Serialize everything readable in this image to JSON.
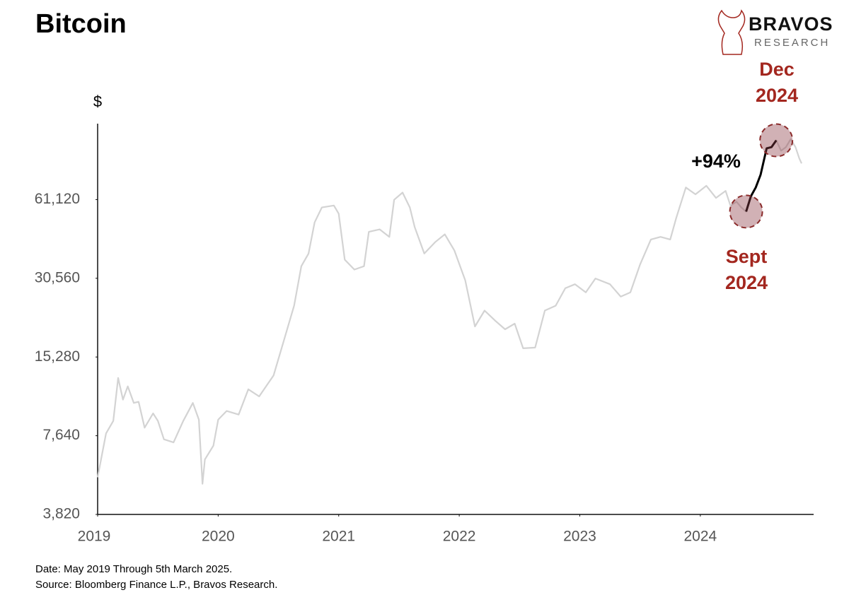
{
  "chart_data": {
    "type": "line",
    "title": "Bitcoin",
    "y_label": "$",
    "brand": {
      "name": "BRAVOS",
      "subtitle": "RESEARCH"
    },
    "notes": [
      "Date: May 2019 Through 5th March 2025.",
      "Source: Bloomberg Finance L.P., Bravos Research."
    ],
    "annotations": {
      "change": "+94%",
      "end": [
        "Dec",
        "2024"
      ],
      "start": [
        "Sept",
        "2024"
      ]
    },
    "log_scale": true,
    "grid": false,
    "xlim": [
      2019.33,
      2025.27
    ],
    "ylim": [
      3820,
      120000
    ],
    "xticks": [
      {
        "value": 2019.33,
        "label": "2019"
      },
      {
        "value": 2020.33,
        "label": "2020"
      },
      {
        "value": 2021.33,
        "label": "2021"
      },
      {
        "value": 2022.33,
        "label": "2022"
      },
      {
        "value": 2023.33,
        "label": "2023"
      },
      {
        "value": 2024.33,
        "label": "2024"
      }
    ],
    "yticks": [
      {
        "value": 3820,
        "label": "3,820"
      },
      {
        "value": 7640,
        "label": "7,640"
      },
      {
        "value": 15280,
        "label": "15,280"
      },
      {
        "value": 30560,
        "label": "30,560"
      },
      {
        "value": 61120,
        "label": "61,120"
      }
    ],
    "series": [
      {
        "color": "#d3d3d3",
        "x": [
          2019.33,
          2019.4,
          2019.46,
          2019.5,
          2019.54,
          2019.58,
          2019.63,
          2019.67,
          2019.72,
          2019.79,
          2019.83,
          2019.88,
          2019.96,
          2020.04,
          2020.12,
          2020.17,
          2020.2,
          2020.22,
          2020.29,
          2020.33,
          2020.4,
          2020.5,
          2020.58,
          2020.67,
          2020.79,
          2020.88,
          2020.96,
          2021.02,
          2021.08,
          2021.13,
          2021.19,
          2021.29,
          2021.33,
          2021.38,
          2021.46,
          2021.54,
          2021.58,
          2021.67,
          2021.75,
          2021.79,
          2021.86,
          2021.92,
          2021.96,
          2022.04,
          2022.13,
          2022.21,
          2022.29,
          2022.38,
          2022.46,
          2022.54,
          2022.63,
          2022.71,
          2022.79,
          2022.86,
          2022.96,
          2023.04,
          2023.13,
          2023.21,
          2023.29,
          2023.38,
          2023.46,
          2023.58,
          2023.67,
          2023.75,
          2023.83,
          2023.92,
          2024.0,
          2024.08,
          2024.13,
          2024.21,
          2024.29,
          2024.38,
          2024.46,
          2024.54,
          2024.58,
          2024.63,
          2024.67,
          2024.71,
          2024.75,
          2024.79,
          2024.83,
          2024.88,
          2024.92,
          2024.96,
          2025.0,
          2025.04,
          2025.08,
          2025.12,
          2025.15,
          2025.17
        ],
        "values": [
          5300,
          7800,
          8700,
          12700,
          10500,
          11800,
          10200,
          10300,
          8200,
          9300,
          8700,
          7400,
          7200,
          8700,
          10200,
          8800,
          5000,
          6200,
          7000,
          8800,
          9500,
          9200,
          11500,
          10800,
          13000,
          18000,
          24000,
          34000,
          38000,
          50000,
          57000,
          58000,
          54000,
          36000,
          33000,
          34000,
          46000,
          47000,
          44000,
          61000,
          65000,
          57000,
          48000,
          38000,
          42000,
          45000,
          39000,
          30000,
          20000,
          23000,
          21000,
          19500,
          20500,
          16500,
          16600,
          23000,
          24000,
          28000,
          29000,
          27000,
          30500,
          29000,
          26000,
          27000,
          34500,
          43000,
          44000,
          43000,
          52000,
          68000,
          64000,
          69000,
          62000,
          66000,
          58000,
          60000,
          57000,
          55000,
          63000,
          68000,
          76000,
          96000,
          97000,
          103000,
          94000,
          97000,
          104000,
          97000,
          88000,
          84000
        ]
      },
      {
        "color": "#000000",
        "x": [
          2024.71,
          2024.75,
          2024.79,
          2024.83,
          2024.88,
          2024.92,
          2024.96
        ],
        "values": [
          55000,
          63000,
          68000,
          76000,
          96000,
          97000,
          103000
        ]
      }
    ]
  }
}
